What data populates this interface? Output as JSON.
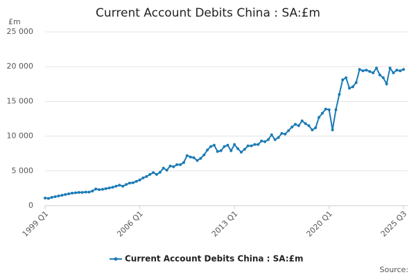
{
  "chart_data": {
    "type": "line",
    "title": "Current Account Debits China : SA:£m",
    "y_unit_label": "£m",
    "source_label": "Source:",
    "categories": [
      "1999 Q1",
      null,
      null,
      null,
      null,
      null,
      null,
      null,
      null,
      null,
      null,
      null,
      null,
      null,
      null,
      null,
      null,
      null,
      null,
      null,
      null,
      null,
      null,
      null,
      null,
      null,
      null,
      null,
      "2006 Q1",
      null,
      null,
      null,
      null,
      null,
      null,
      null,
      null,
      null,
      null,
      null,
      null,
      null,
      null,
      null,
      null,
      null,
      null,
      null,
      null,
      null,
      null,
      null,
      null,
      null,
      null,
      null,
      "2013 Q1",
      null,
      null,
      null,
      null,
      null,
      null,
      null,
      null,
      null,
      null,
      null,
      null,
      null,
      null,
      null,
      null,
      null,
      null,
      null,
      null,
      null,
      null,
      null,
      null,
      null,
      null,
      null,
      "2020 Q1",
      null,
      null,
      null,
      null,
      null,
      null,
      null,
      null,
      null,
      null,
      null,
      null,
      null,
      null,
      null,
      null,
      null,
      null,
      null,
      null,
      null,
      "2025 Q3"
    ],
    "series": [
      {
        "name": "Current Account Debits China : SA:£m",
        "color": "#1a7ab5",
        "values": [
          1100,
          1050,
          1200,
          1300,
          1400,
          1500,
          1600,
          1700,
          1800,
          1850,
          1900,
          1900,
          1950,
          1950,
          2100,
          2400,
          2300,
          2350,
          2450,
          2550,
          2650,
          2800,
          2950,
          2800,
          3050,
          3250,
          3300,
          3500,
          3700,
          4000,
          4200,
          4500,
          4750,
          4500,
          4800,
          5400,
          5100,
          5700,
          5600,
          5900,
          5900,
          6200,
          7200,
          7000,
          6900,
          6500,
          6800,
          7300,
          8000,
          8500,
          8700,
          7800,
          7900,
          8500,
          8700,
          7900,
          8800,
          8200,
          7700,
          8100,
          8600,
          8600,
          8800,
          8800,
          9300,
          9200,
          9500,
          10200,
          9500,
          9800,
          10400,
          10300,
          10800,
          11300,
          11700,
          11500,
          12200,
          11800,
          11500,
          10900,
          11200,
          12700,
          13300,
          13900,
          13800,
          10900,
          13800,
          16000,
          18100,
          18400,
          16900,
          17100,
          17700,
          19600,
          19400,
          19500,
          19300,
          19100,
          19800,
          18800,
          18400,
          17500,
          19800,
          19100,
          19500,
          19400,
          19600
        ]
      }
    ],
    "ylim": [
      0,
      25000
    ],
    "yticks": [
      0,
      {
        "value": 5000,
        "label": "5 000"
      },
      {
        "value": 10000,
        "label": "10 000"
      },
      {
        "value": 15000,
        "label": "15 000"
      },
      {
        "value": 20000,
        "label": "20 000"
      },
      {
        "value": 25000,
        "label": "25 000"
      }
    ],
    "grid": true
  }
}
